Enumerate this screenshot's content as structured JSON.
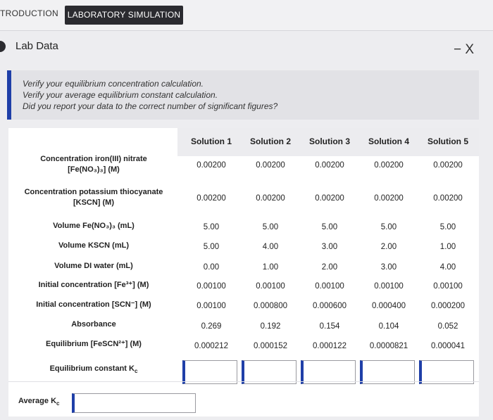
{
  "tabs": {
    "introduction": "TRODUCTION",
    "laboratory_simulation": "LABORATORY SIMULATION"
  },
  "panel": {
    "title": "Lab Data",
    "close": "− X"
  },
  "instructions": [
    "Verify your equilibrium concentration calculation.",
    "Verify your average equilibrium constant calculation.",
    "Did you report your data to the correct number of significant figures?"
  ],
  "table": {
    "columns": [
      "Solution 1",
      "Solution 2",
      "Solution 3",
      "Solution 4",
      "Solution 5"
    ],
    "rows": [
      {
        "label_line1": "Concentration iron(III) nitrate",
        "label_line2": "[Fe(NO₃)₃] (M)",
        "values": [
          "0.00200",
          "0.00200",
          "0.00200",
          "0.00200",
          "0.00200"
        ]
      },
      {
        "label_line1": "Concentration potassium thiocyanate",
        "label_line2": "[KSCN] (M)",
        "values": [
          "0.00200",
          "0.00200",
          "0.00200",
          "0.00200",
          "0.00200"
        ]
      },
      {
        "label_line1": "Volume Fe(NO₃)₃ (mL)",
        "label_line2": "",
        "values": [
          "5.00",
          "5.00",
          "5.00",
          "5.00",
          "5.00"
        ]
      },
      {
        "label_line1": "Volume KSCN (mL)",
        "label_line2": "",
        "values": [
          "5.00",
          "4.00",
          "3.00",
          "2.00",
          "1.00"
        ]
      },
      {
        "label_line1": "Volume DI water (mL)",
        "label_line2": "",
        "values": [
          "0.00",
          "1.00",
          "2.00",
          "3.00",
          "4.00"
        ]
      },
      {
        "label_line1": "Initial concentration [Fe³⁺] (M)",
        "label_line2": "",
        "values": [
          "0.00100",
          "0.00100",
          "0.00100",
          "0.00100",
          "0.00100"
        ]
      },
      {
        "label_line1": "Initial concentration [SCN⁻] (M)",
        "label_line2": "",
        "values": [
          "0.00100",
          "0.000800",
          "0.000600",
          "0.000400",
          "0.000200"
        ]
      },
      {
        "label_line1": "Absorbance",
        "label_line2": "",
        "values": [
          "0.269",
          "0.192",
          "0.154",
          "0.104",
          "0.052"
        ]
      },
      {
        "label_line1": "Equilibrium [FeSCN²⁺] (M)",
        "label_line2": "",
        "values": [
          "0.000212",
          "0.000152",
          "0.000122",
          "0.0000821",
          "0.000041"
        ]
      }
    ],
    "kc_label": "Equilibrium constant K",
    "kc_sub": "c",
    "kc_inputs": [
      "",
      "",
      "",
      "",
      ""
    ]
  },
  "average": {
    "label": "Average K",
    "label_sub": "c",
    "value": ""
  },
  "colors": {
    "accent": "#1f3fa8",
    "tab_active_bg": "#2b2b30"
  }
}
